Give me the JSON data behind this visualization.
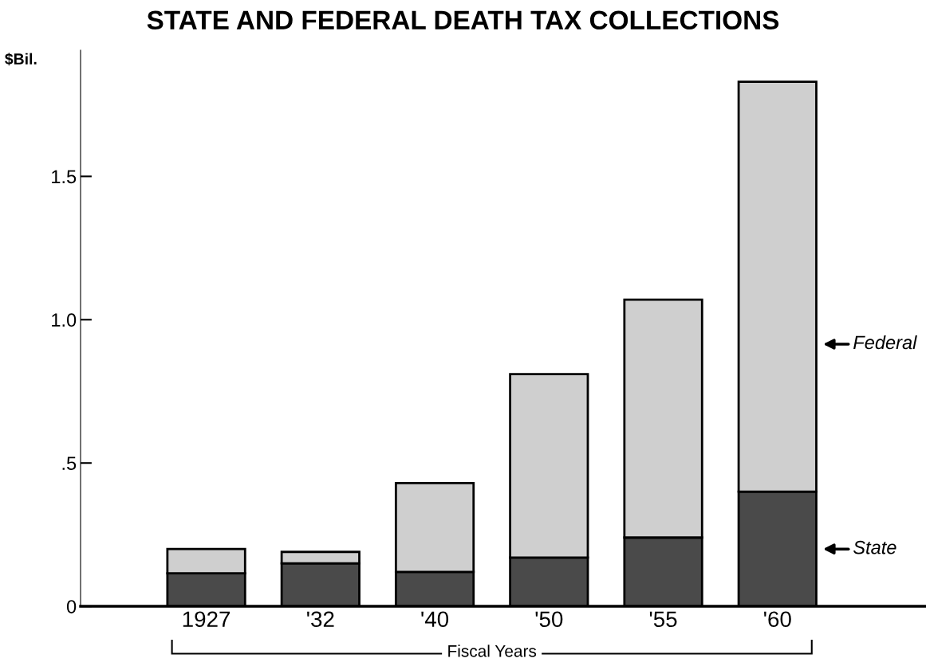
{
  "chart_data": {
    "type": "bar",
    "title": "STATE AND FEDERAL DEATH TAX COLLECTIONS",
    "ylabel": "$Bil.",
    "xlabel": "Fiscal Years",
    "categories": [
      "1927",
      "'32",
      "'40",
      "'50",
      "'55",
      "'60"
    ],
    "stacked": true,
    "series": [
      {
        "name": "State",
        "color": "#4a4a4a",
        "values": [
          0.115,
          0.15,
          0.12,
          0.17,
          0.24,
          0.4
        ]
      },
      {
        "name": "Federal",
        "color": "#cfcfcf",
        "values": [
          0.085,
          0.04,
          0.31,
          0.64,
          0.83,
          1.43
        ]
      }
    ],
    "ylim": [
      0,
      1.94
    ],
    "yticks": [
      0,
      {
        "value": 0.5,
        "label": ".5"
      },
      {
        "value": 1.0,
        "label": "1.0"
      },
      1.5
    ],
    "grid": false,
    "legend": "right"
  }
}
